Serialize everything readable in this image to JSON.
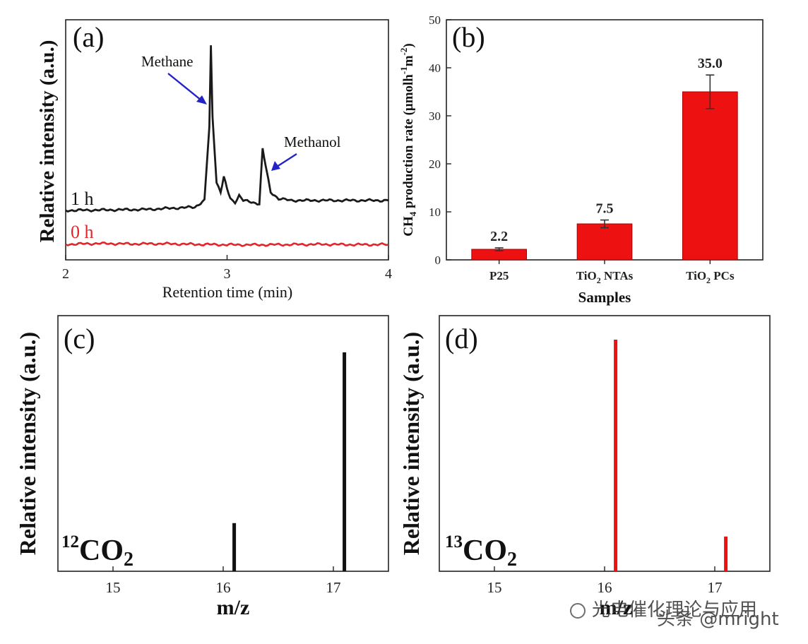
{
  "chart_data": [
    {
      "panel": "(a)",
      "type": "line",
      "xlabel": "Retention time (min)",
      "ylabel": "Relative intensity (a.u.)",
      "xlim": [
        2,
        4
      ],
      "xticks": [
        "2",
        "3",
        "4"
      ],
      "series": [
        {
          "name": "1 h",
          "color": "#1a1a1a",
          "x": [
            2.0,
            2.5,
            2.8,
            2.86,
            2.89,
            2.9,
            2.91,
            2.935,
            2.96,
            2.98,
            3.0,
            3.02,
            3.05,
            3.075,
            3.1,
            3.2,
            3.22,
            3.24,
            3.27,
            3.32,
            3.4,
            4.0
          ],
          "y": [
            0.0,
            0.006,
            0.02,
            0.06,
            0.5,
            0.985,
            0.56,
            0.17,
            0.11,
            0.2,
            0.13,
            0.07,
            0.05,
            0.09,
            0.06,
            0.04,
            0.37,
            0.26,
            0.11,
            0.07,
            0.06,
            0.06
          ]
        },
        {
          "name": "0 h",
          "color": "#e0262a",
          "x": [
            2.0,
            2.2,
            2.4,
            2.6,
            2.8,
            3.0,
            3.2,
            3.4,
            3.6,
            3.8,
            4.0
          ],
          "y": [
            0.0,
            0.02,
            0.01,
            0.015,
            0.0,
            -0.01,
            -0.012,
            -0.005,
            0.0,
            -0.008,
            -0.005
          ]
        }
      ],
      "annotations": [
        "Methane",
        "Methanol"
      ]
    },
    {
      "panel": "(b)",
      "type": "bar",
      "categories": [
        "P25",
        "TiO2 NTAs",
        "TiO2 PCs"
      ],
      "category_labels": [
        {
          "main": "P25",
          "sub": "",
          "rest": ""
        },
        {
          "main": "TiO",
          "sub": "2",
          "rest": " NTAs"
        },
        {
          "main": "TiO",
          "sub": "2",
          "rest": " PCs"
        }
      ],
      "values": [
        2.2,
        7.5,
        35.0
      ],
      "errors": [
        0.3,
        0.8,
        3.5
      ],
      "value_labels": [
        "2.2",
        "7.5",
        "35.0"
      ],
      "color": "#ee1111",
      "xlabel": "Samples",
      "ylabel": "CH4 production rate (μmolh⁻¹m⁻²)",
      "ylabel_parts": {
        "a": "CH",
        "sub": "4",
        "b": " production rate (μmolh",
        "sup1": "-1",
        "c": "m",
        "sup2": "-2",
        "d": ")"
      },
      "ylim": [
        0,
        50
      ],
      "yticks": [
        "0",
        "10",
        "20",
        "30",
        "40",
        "50"
      ]
    },
    {
      "panel": "(c)",
      "type": "bar",
      "label": {
        "mass": "12",
        "formula": "CO",
        "sub": "2"
      },
      "x": [
        16.1,
        17.1
      ],
      "values": [
        0.22,
        1.0
      ],
      "color": "#111111",
      "xlabel": "m/z",
      "ylabel": "Relative intensity (a.u.)",
      "xlim": [
        14.5,
        17.5
      ],
      "xticks": [
        "15",
        "16",
        "17"
      ]
    },
    {
      "panel": "(d)",
      "type": "bar",
      "label": {
        "mass": "13",
        "formula": "CO",
        "sub": "2"
      },
      "x": [
        16.1,
        17.1
      ],
      "values": [
        1.0,
        0.15
      ],
      "color": "#ee1111",
      "xlabel": "m/z",
      "ylabel": "Relative intensity (a.u.)",
      "xlim": [
        14.5,
        17.5
      ],
      "xticks": [
        "15",
        "16",
        "17"
      ]
    }
  ],
  "watermark": {
    "text": "头条 @mright",
    "overlay": "光电催化理论与应用"
  }
}
